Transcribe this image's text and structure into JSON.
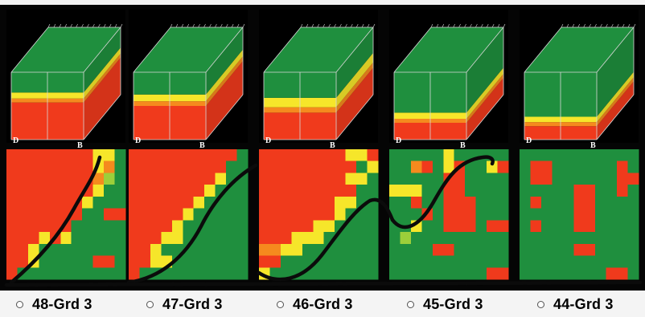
{
  "colors": {
    "red": "#f03a1c",
    "orange": "#f58a1e",
    "yellow": "#f6e62a",
    "green": "#1f8f3e",
    "lime": "#9ccf3a",
    "frame": "#050505",
    "axis": "#d8d8d8",
    "pen": "#0b0b0b"
  },
  "cube_axis_labels": [
    "D",
    "B"
  ],
  "grades": [
    {
      "label": "48-Grd 3",
      "selected": false,
      "cube": {
        "red": 0.55,
        "orange": 0.06,
        "yellow": 0.09,
        "green": 0.3
      },
      "map": [
        "RRRRRRRRYYG",
        "RRRRRRRRYOG",
        "RRRRRRRROLG",
        "RRRRRRRRYGG",
        "RRRRRRRYGGG",
        "RRRRRRRGGRR",
        "RRRRRRGGGGG",
        "RRRYRYGGGGG",
        "RRYGGGGGGGG",
        "RRYGGGGGRRG",
        "RGGGGGGGGGG"
      ]
    },
    {
      "label": "47-Grd 3",
      "selected": false,
      "cube": {
        "red": 0.5,
        "orange": 0.07,
        "yellow": 0.1,
        "green": 0.33
      },
      "map": [
        "RRRRRRRRRRG",
        "RRRRRRRRRGG",
        "RRRRRRRRYGG",
        "RRRRRRRYGGG",
        "RRRRRRYGGGG",
        "RRRRRYGGGGG",
        "RRRRYGGGGGG",
        "RRRYYGGGGGG",
        "RRYGGGGGGGG",
        "RRYYGGGGGGG",
        "RGGGGGGGGGG"
      ]
    },
    {
      "label": "46-Grd 3",
      "selected": false,
      "cube": {
        "red": 0.4,
        "orange": 0.08,
        "yellow": 0.14,
        "green": 0.38
      },
      "map": [
        "RRRRRRRRYYR",
        "RRRRRRRRRGY",
        "RRRRRRRRYYG",
        "RRRRRRRRRGG",
        "RRRRRRRYYGG",
        "RRRRRRRYGGG",
        "RRRRRYYGGGG",
        "RRRYYYGGGGG",
        "OOYYGGGGGGG",
        "RRGGGGGGGGG",
        "YGGGGGGGGGG"
      ]
    },
    {
      "label": "45-Grd 3",
      "selected": false,
      "cube": {
        "red": 0.25,
        "orange": 0.06,
        "yellow": 0.09,
        "green": 0.6
      },
      "map": [
        "GGGGGYGGGGG",
        "GGORGYRGGYR",
        "GGGGGRRGGGG",
        "YYYGGRRGGGG",
        "GGRGGRRRGGG",
        "GGGRGRRRGGG",
        "GGYGGRRRGRR",
        "GLGGGGGGGGG",
        "GGGGRRGGGGG",
        "GGGGGGGGGGG",
        "GGGGGGGGGRR"
      ]
    },
    {
      "label": "44-Grd 3",
      "selected": false,
      "cube": {
        "red": 0.2,
        "orange": 0.06,
        "yellow": 0.08,
        "green": 0.66
      },
      "map": [
        "GGGGGGGGGGG",
        "GRRGGGGGGRG",
        "GRRGGGGGGRR",
        "GGGGGRRGGRG",
        "GRGGGRRGGGG",
        "GGGGGRRGGGG",
        "GRGGGRRGGGG",
        "GGGGGGGGGGG",
        "GGGGGRRGGGG",
        "GGGGGGGGGGG",
        "GGGGGGGGRRG"
      ]
    }
  ]
}
